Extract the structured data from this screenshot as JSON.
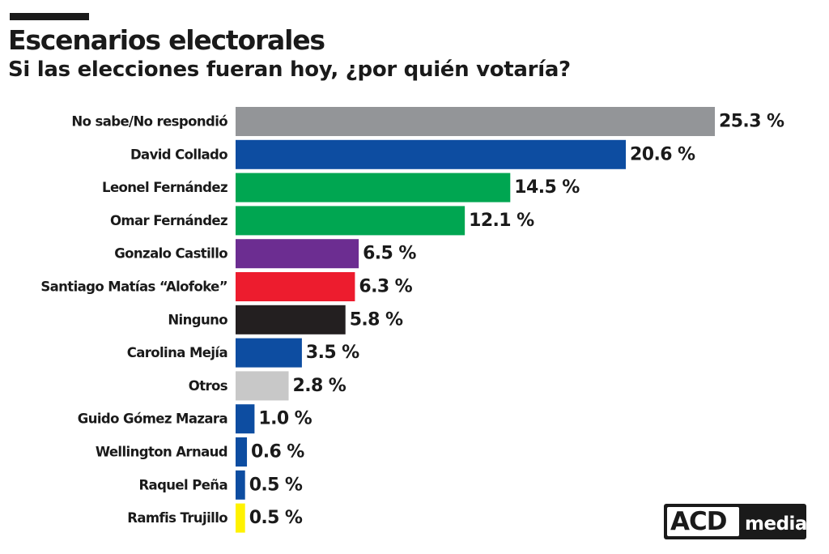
{
  "header": {
    "title": "Escenarios electorales",
    "subtitle": "Si las elecciones fueran hoy, ¿por quién votaría?"
  },
  "logo": {
    "primary": "ACD",
    "secondary": "media"
  },
  "chart_data": {
    "type": "bar",
    "orientation": "horizontal",
    "categories": [
      "No sabe/No respondió",
      "David Collado",
      "Leonel Fernández",
      "Omar Fernández",
      "Gonzalo Castillo",
      "Santiago Matías “Alofoke”",
      "Ninguno",
      "Carolina Mejía",
      "Otros",
      "Guido Gómez Mazara",
      "Wellington Arnaud",
      "Raquel Peña",
      "Ramfis Trujillo"
    ],
    "values": [
      25.3,
      20.6,
      14.5,
      12.1,
      6.5,
      6.3,
      5.8,
      3.5,
      2.8,
      1.0,
      0.6,
      0.5,
      0.5
    ],
    "value_labels": [
      "25.3 %",
      "20.6 %",
      "14.5 %",
      "12.1 %",
      "6.5 %",
      "6.3 %",
      "5.8 %",
      "3.5 %",
      "2.8 %",
      "1.0 %",
      "0.6 %",
      "0.5 %",
      "0.5 %"
    ],
    "colors": [
      "#939598",
      "#0d4da1",
      "#00a651",
      "#00a651",
      "#6c2d91",
      "#ed1c2e",
      "#231f20",
      "#0d4da1",
      "#c8c8c8",
      "#0d4da1",
      "#0d4da1",
      "#0d4da1",
      "#fff200"
    ],
    "title": "Escenarios electorales",
    "subtitle": "Si las elecciones fueran hoy, ¿por quién votaría?",
    "xlabel": "",
    "ylabel": "",
    "grid": false,
    "legend": "none"
  }
}
